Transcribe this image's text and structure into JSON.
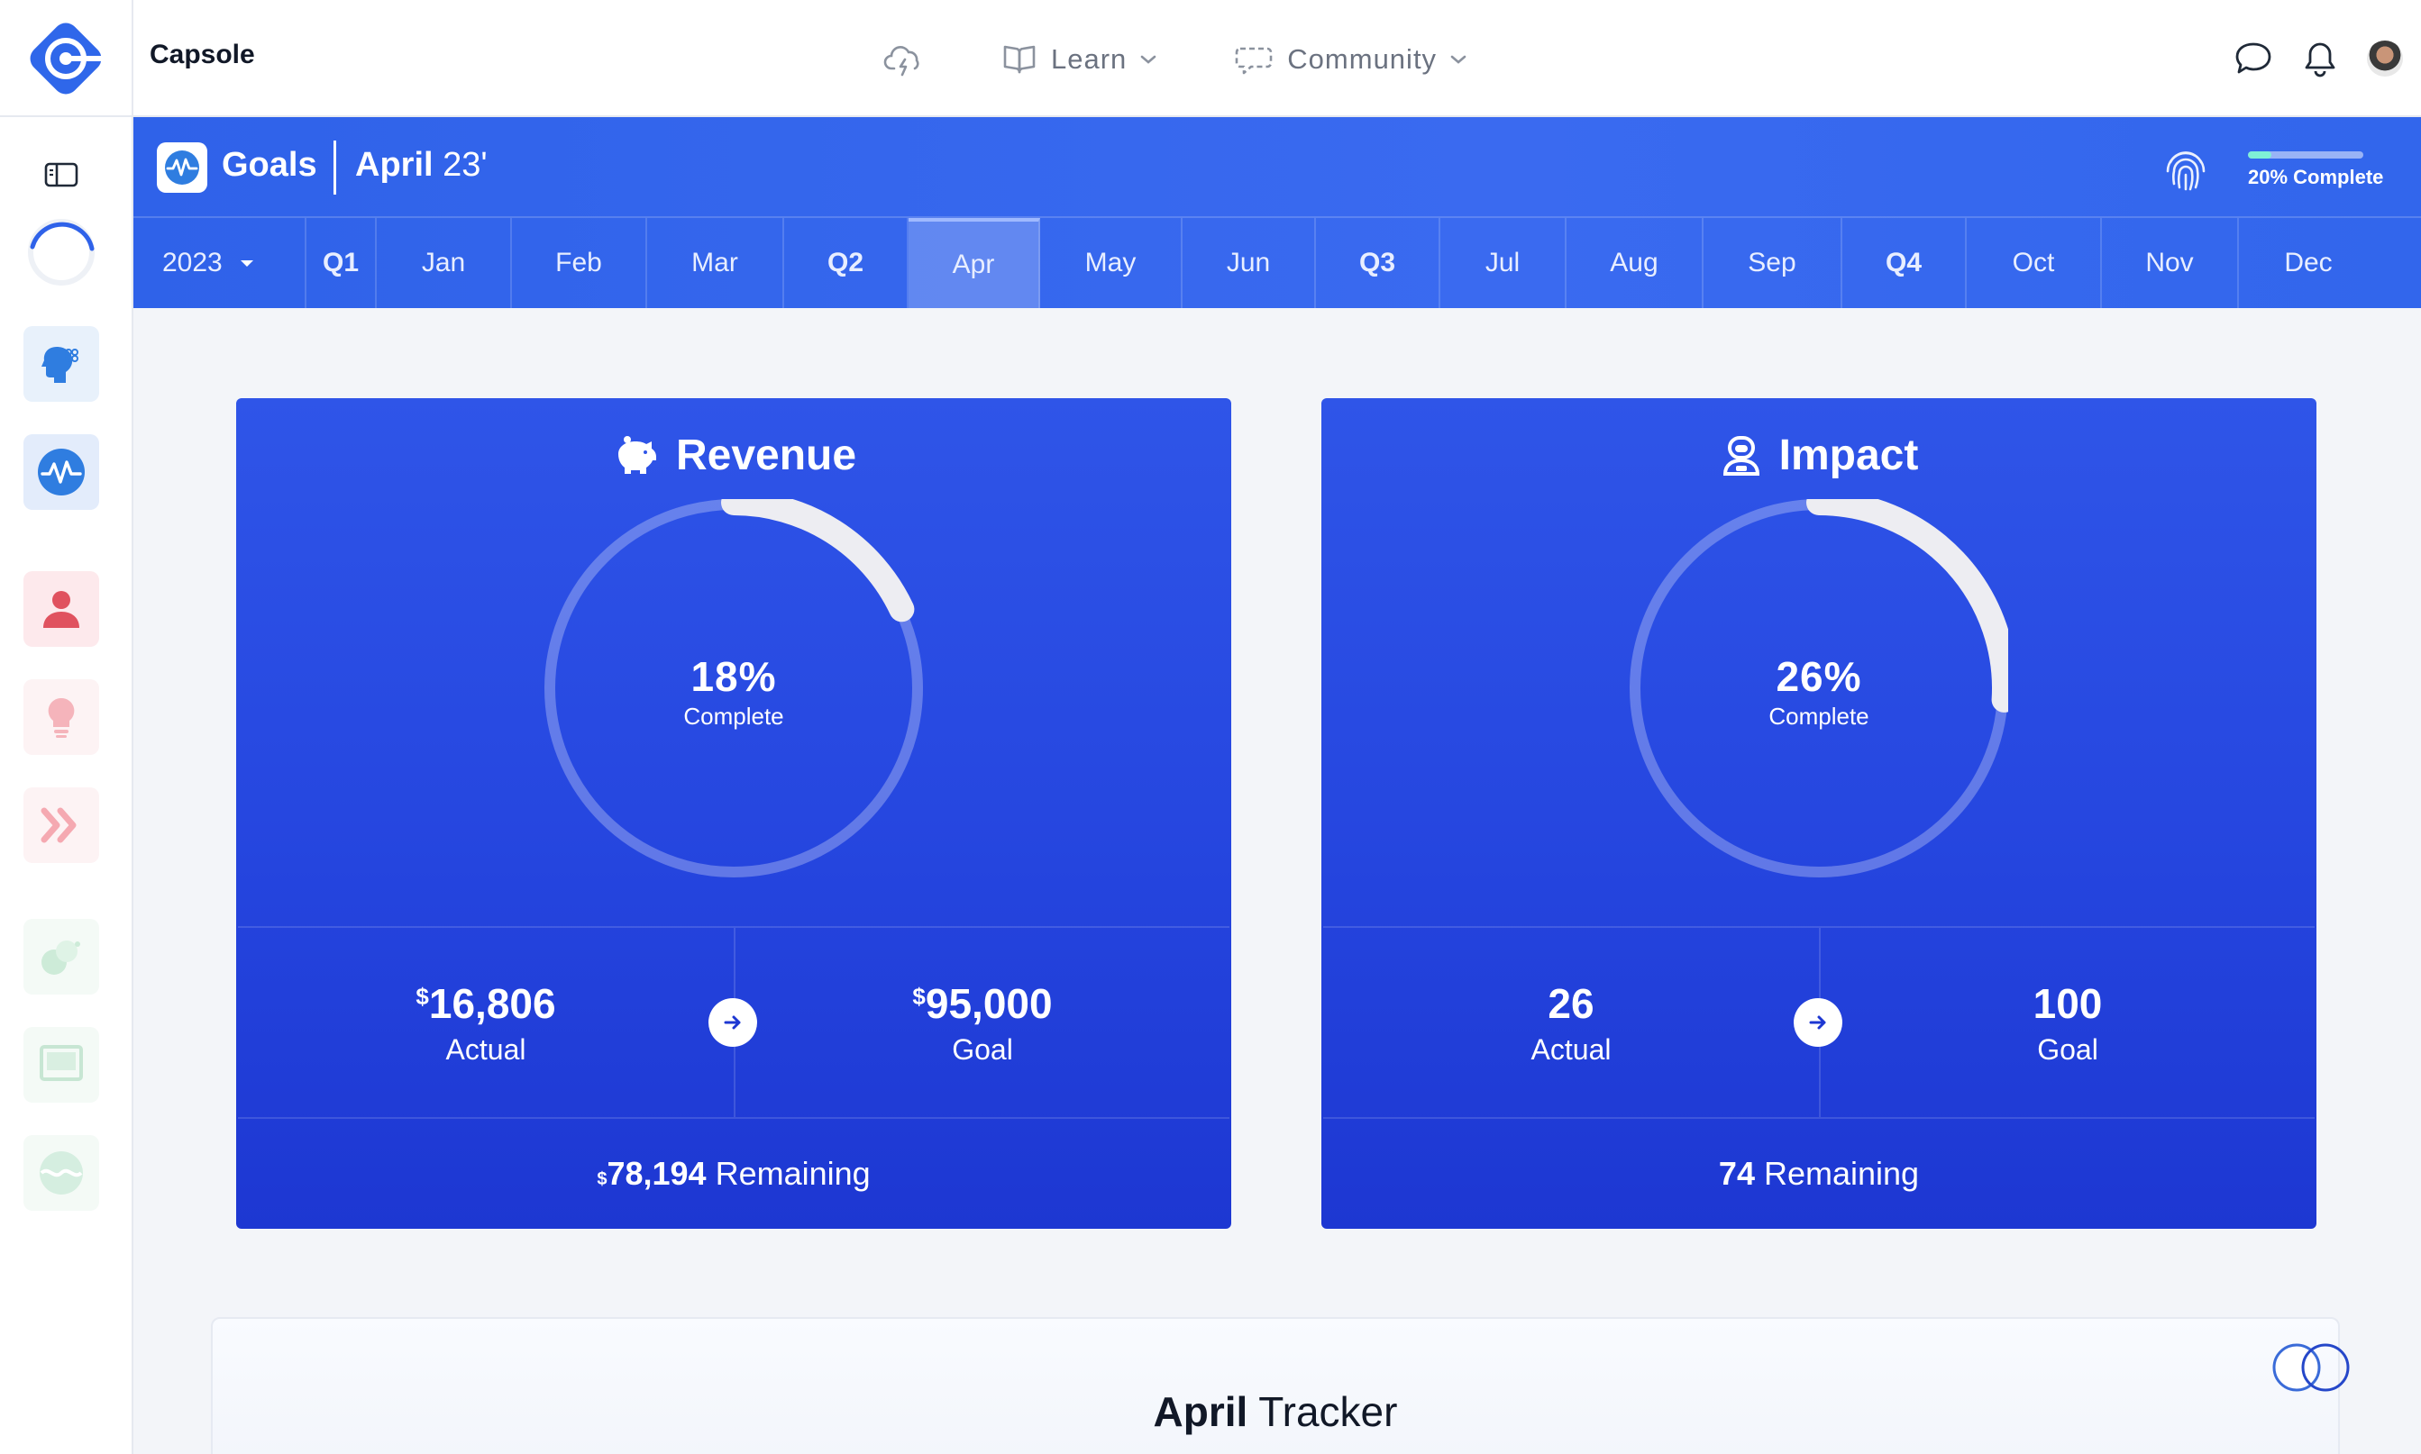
{
  "app": {
    "name": "Capsole"
  },
  "nav": {
    "items": [
      {
        "label": "",
        "icon": "cloud-bolt-icon"
      },
      {
        "label": "Learn",
        "icon": "book-icon"
      },
      {
        "label": "Community",
        "icon": "chat-bubble-icon"
      }
    ]
  },
  "top_right": {
    "icons": [
      "message-icon",
      "bell-icon",
      "avatar"
    ]
  },
  "sidebar": {
    "items": [
      "panel-toggle-icon",
      "progress-ring-icon",
      "brain-icon",
      "pulse-icon",
      "person-icon",
      "lightbulb-icon",
      "chevrons-icon",
      "bubbles-icon",
      "monitor-icon",
      "wave-icon"
    ]
  },
  "header": {
    "title": "Goals",
    "month": "April",
    "year_suffix": "23'",
    "progress_label": "20% Complete",
    "progress_value": 0.2,
    "year_select": "2023",
    "tabs": [
      "Q1",
      "Jan",
      "Feb",
      "Mar",
      "Q2",
      "Apr",
      "May",
      "Jun",
      "Q3",
      "Jul",
      "Aug",
      "Sep",
      "Q4",
      "Oct",
      "Nov",
      "Dec"
    ],
    "active_tab": "Apr"
  },
  "cards": {
    "revenue": {
      "title": "Revenue",
      "percent": "18%",
      "percent_value": 0.18,
      "complete_label": "Complete",
      "actual_currency": "$",
      "actual": "16,806",
      "actual_label": "Actual",
      "goal_currency": "$",
      "goal": "95,000",
      "goal_label": "Goal",
      "remaining_currency": "$",
      "remaining": "78,194",
      "remaining_label": "Remaining"
    },
    "impact": {
      "title": "Impact",
      "percent": "26%",
      "percent_value": 0.26,
      "complete_label": "Complete",
      "actual": "26",
      "actual_label": "Actual",
      "goal": "100",
      "goal_label": "Goal",
      "remaining": "74",
      "remaining_label": "Remaining"
    }
  },
  "tracker": {
    "title_bold": "April",
    "title_rest": "Tracker"
  },
  "colors": {
    "accent": "#3266ec",
    "card": "#2647e0",
    "progress_fill": "#7ff0d6"
  }
}
